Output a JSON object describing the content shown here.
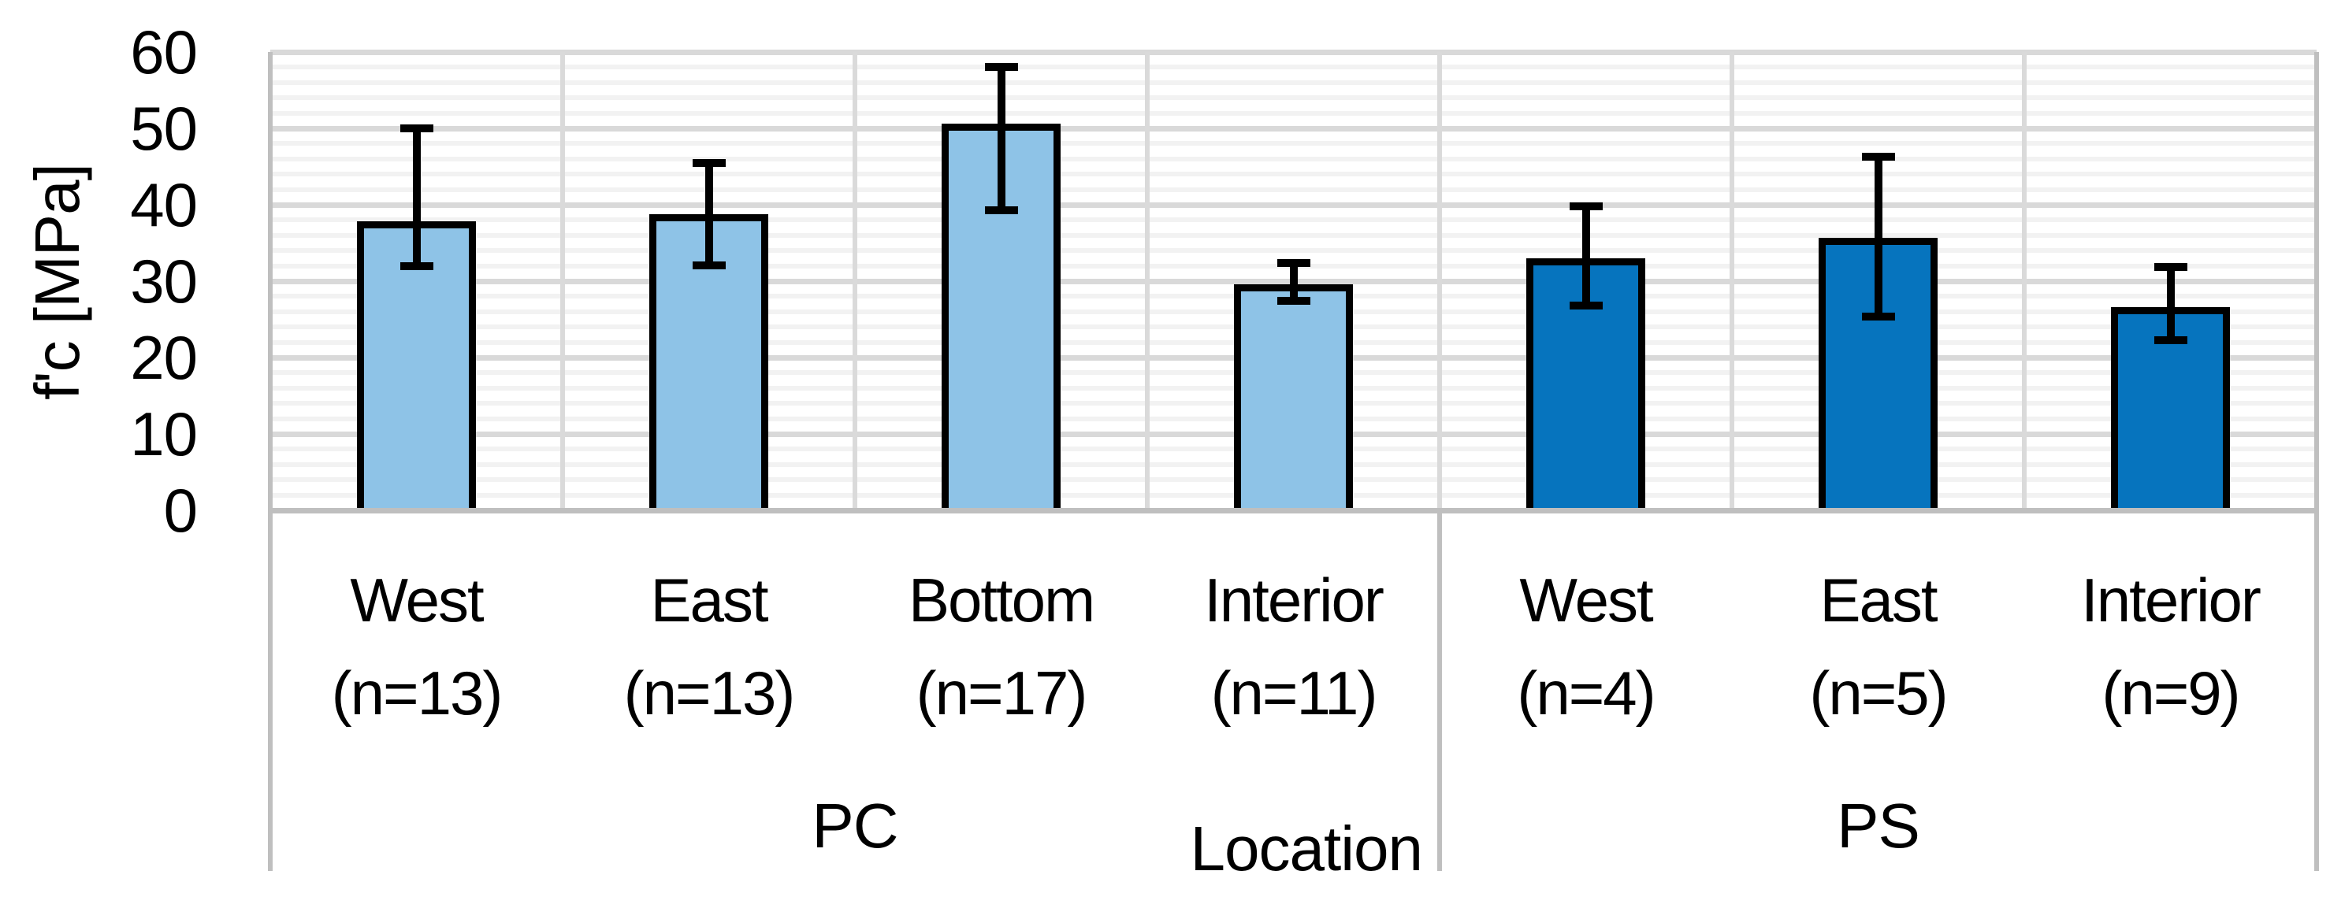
{
  "chart_data": {
    "type": "bar",
    "title": "",
    "ylabel": "f'c [MPa]",
    "xlabel": "Location",
    "ylim": [
      0,
      60
    ],
    "yticks": [
      0,
      10,
      20,
      30,
      40,
      50,
      60
    ],
    "y_minor_step": 2,
    "legend": "none",
    "grid": "horizontal major every 10 + minor every 2; vertical category separators",
    "categories": [
      "West (n=13)",
      "East (n=13)",
      "Bottom (n=17)",
      "Interior (n=11)",
      "West (n=4)",
      "East (n=5)",
      "Interior (n=9)"
    ],
    "groups": [
      {
        "label": "PC",
        "bar_color": "#8EC3E7",
        "bars": [
          {
            "name": "West",
            "n_label": "(n=13)",
            "value": 37.8,
            "err_low": 32.0,
            "err_high": 50.0
          },
          {
            "name": "East",
            "n_label": "(n=13)",
            "value": 38.8,
            "err_low": 32.1,
            "err_high": 45.5
          },
          {
            "name": "Bottom",
            "n_label": "(n=17)",
            "value": 50.6,
            "err_low": 39.3,
            "err_high": 58.0
          },
          {
            "name": "Interior",
            "n_label": "(n=11)",
            "value": 29.6,
            "err_low": 27.4,
            "err_high": 32.4
          }
        ]
      },
      {
        "label": "PS",
        "bar_color": "#0674BE",
        "bars": [
          {
            "name": "West",
            "n_label": "(n=4)",
            "value": 33.0,
            "err_low": 26.8,
            "err_high": 39.8
          },
          {
            "name": "East",
            "n_label": "(n=5)",
            "value": 35.7,
            "err_low": 25.4,
            "err_high": 46.3
          },
          {
            "name": "Interior",
            "n_label": "(n=9)",
            "value": 26.6,
            "err_low": 22.3,
            "err_high": 31.9
          }
        ]
      }
    ],
    "colors": {
      "bar_fill_pc": "#8EC3E7",
      "bar_fill_ps": "#0674BE",
      "bar_border": "#000000",
      "error_bar": "#000000",
      "gridline_major": "#D9D9D9",
      "gridline_minor": "#F2F2F2",
      "category_separator": "#DADADA",
      "axis_line": "#BFBFBF",
      "text": "#000000",
      "background": "#FFFFFF"
    }
  }
}
